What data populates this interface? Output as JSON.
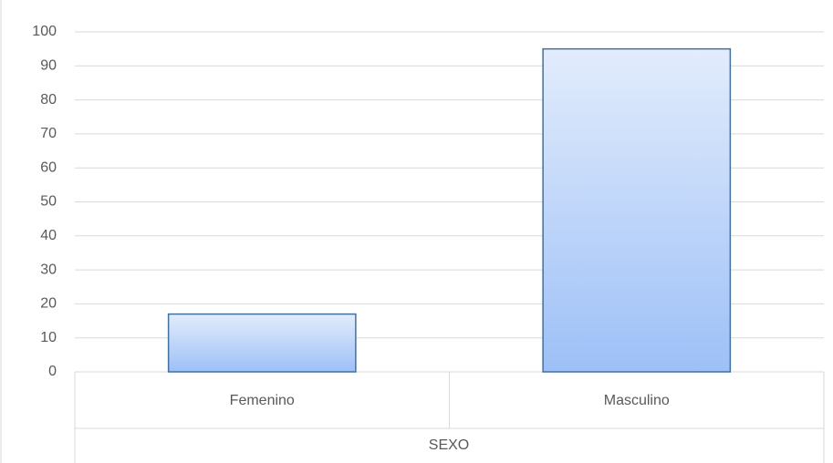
{
  "chart_data": {
    "type": "bar",
    "x_label": "SEXO",
    "categories": [
      "Femenino",
      "Masculino"
    ],
    "values": [
      17,
      95
    ],
    "color": "#9dc0f7",
    "edge_color": "#41719c",
    "ylim": [
      0,
      100
    ],
    "yticks": [
      0,
      10,
      20,
      30,
      40,
      50,
      60,
      70,
      80,
      90,
      100
    ],
    "grid": true
  }
}
